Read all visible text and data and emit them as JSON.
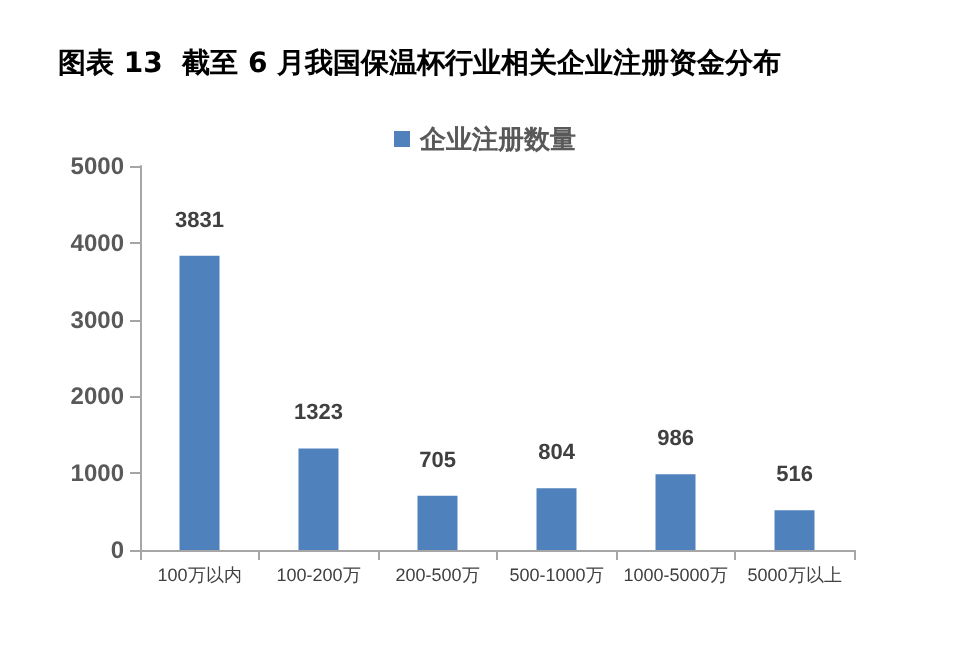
{
  "chart_data": {
    "type": "bar",
    "title": "图表 13  截至 6 月我国保温杯行业相关企业注册资金分布",
    "categories": [
      "100万以内",
      "100-200万",
      "200-500万",
      "500-1000万",
      "1000-5000万",
      "5000万以上"
    ],
    "series": [
      {
        "name": "企业注册数量",
        "color": "#4f81bd",
        "values": [
          3831,
          1323,
          705,
          804,
          986,
          516
        ]
      }
    ],
    "ylim": [
      0,
      5000
    ],
    "yticks": [
      0,
      1000,
      2000,
      3000,
      4000,
      5000
    ],
    "grid": false,
    "legend": "top",
    "data_labels": true
  }
}
